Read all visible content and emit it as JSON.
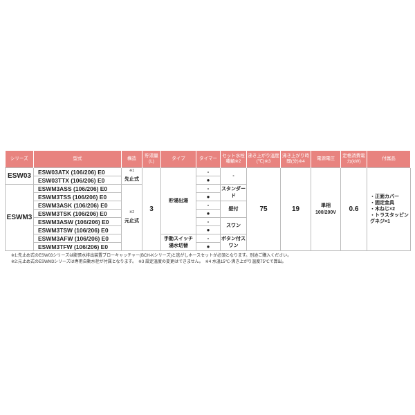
{
  "headers": {
    "series": "シリーズ",
    "model": "型式",
    "structure": "構造",
    "capacity": "貯湯量(L)",
    "type": "タイプ",
    "timer": "タイマー",
    "faucet": "セット水栓種類※2",
    "temp": "沸き上がり温度(℃)※3",
    "time": "沸き上がり時間(分)※4",
    "power_source": "電源電圧",
    "power": "定格消費電力(kW)",
    "accessories": "付属品"
  },
  "series": [
    "ESW03",
    "ESWM3"
  ],
  "models": [
    "ESW03ATX (106/206) E0",
    "ESW03TTX (106/206) E0",
    "ESWM3ASS (106/206) E0",
    "ESWM3TSS (106/206) E0",
    "ESWM3ASK (106/206) E0",
    "ESWM3TSK (106/206) E0",
    "ESWM3ASW (106/206) E0",
    "ESWM3TSW (106/206) E0",
    "ESWM3AFW (106/206) E0",
    "ESWM3TFW (106/206) E0"
  ],
  "structure": {
    "first": "先止式",
    "first_note": "※1",
    "second": "元止式",
    "second_note": "※2"
  },
  "capacity": "3",
  "types": [
    "貯湯出湯",
    "手動スイッチ 湯水切替"
  ],
  "timer": [
    "-",
    "●",
    "-",
    "●",
    "-",
    "●",
    "-",
    "●",
    "-",
    "●"
  ],
  "faucets": [
    "-",
    "スタンダード",
    "壁付",
    "スワン",
    "ボタン付スワン"
  ],
  "temp": "75",
  "time": "19",
  "power_source": "単相 100/200V",
  "power": "0.6",
  "accessories": [
    "・正面カバー",
    "・固定金具",
    "・木ねじ×2",
    "・トラスタッピングネジ×1"
  ],
  "notes": [
    "※1:先止め式のESW03シリーズは膨張水排出装置ブローキャッチャー(BCH-Kシリーズ)と逃がしホースセットが必須となります。別途ご購入ください。",
    "※2:元止め式のESWM3シリーズは専用自動水栓が付属となります。　※3 設定温度の変更はできません。　※4 水温15℃-沸き上がり温度75℃で算出。"
  ]
}
